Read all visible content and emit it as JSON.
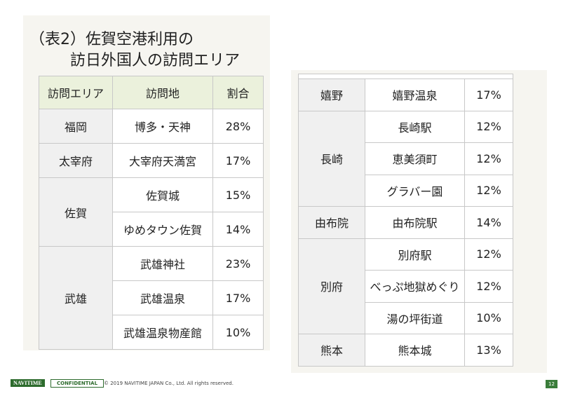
{
  "title": [
    "（表2）佐賀空港利用の",
    "訪日外国人の訪問エリア"
  ],
  "left_table": {
    "header": [
      "訪問エリア",
      "訪問地",
      "割合"
    ],
    "groups": [
      {
        "area": "福岡",
        "rows": [
          [
            "博多・天神",
            "28%"
          ]
        ]
      },
      {
        "area": "太宰府",
        "rows": [
          [
            "大宰府天満宮",
            "17%"
          ]
        ]
      },
      {
        "area": "佐賀",
        "rows": [
          [
            "佐賀城",
            "15%"
          ],
          [
            "ゆめタウン佐賀",
            "14%"
          ]
        ]
      },
      {
        "area": "武雄",
        "rows": [
          [
            "武雄神社",
            "23%"
          ],
          [
            "武雄温泉",
            "17%"
          ],
          [
            "武雄温泉物産館",
            "10%"
          ]
        ]
      }
    ]
  },
  "right_table": {
    "groups": [
      {
        "area": "嬉野",
        "rows": [
          [
            "嬉野温泉",
            "17%"
          ]
        ]
      },
      {
        "area": "長崎",
        "rows": [
          [
            "長崎駅",
            "12%"
          ],
          [
            "恵美須町",
            "12%"
          ],
          [
            "グラバー園",
            "12%"
          ]
        ]
      },
      {
        "area": "由布院",
        "rows": [
          [
            "由布院駅",
            "14%"
          ]
        ]
      },
      {
        "area": "別府",
        "rows": [
          [
            "別府駅",
            "12%"
          ],
          [
            "べっぷ地獄めぐり",
            "12%"
          ],
          [
            "湯の坪街道",
            "10%"
          ]
        ]
      },
      {
        "area": "熊本",
        "rows": [
          [
            "熊本城",
            "13%"
          ]
        ]
      }
    ]
  },
  "footer": {
    "logo": "NAVITIME",
    "label": "CONFIDENTIAL",
    "copyright": "© 2019 NAVITIME JAPAN Co., Ltd. All rights reserved.",
    "page": "12"
  }
}
